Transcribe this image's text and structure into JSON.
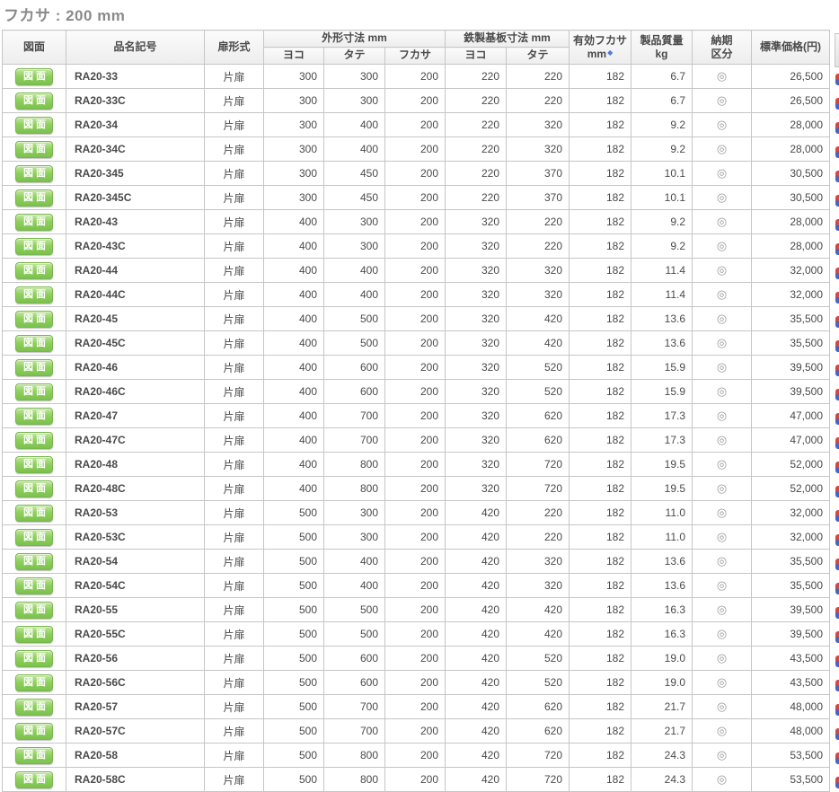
{
  "page": {
    "title": "フカサ : 200 mm"
  },
  "table": {
    "headers": {
      "drawing": "図面",
      "model": "品名記号",
      "door_type": "扉形式",
      "outer_dims_group": "外形寸法 mm",
      "base_dims_group": "鉄製基板寸法 mm",
      "width": "ヨコ",
      "height": "タテ",
      "depth": "フカサ",
      "effective_depth_line1": "有効フカサ",
      "effective_depth_line2": "mm",
      "effective_depth_marker": "◆",
      "weight_line1": "製品質量",
      "weight_line2": "kg",
      "delivery_line1": "納期",
      "delivery_line2": "区分",
      "price": "標準価格(円)"
    },
    "drawing_button_label": "図面",
    "delivery_symbol": "◎",
    "rows": [
      {
        "model": "RA20-33",
        "door": "片扉",
        "outer_w": "300",
        "outer_h": "300",
        "outer_d": "200",
        "base_w": "220",
        "base_h": "220",
        "eff_depth": "182",
        "weight": "6.7",
        "price": "26,500"
      },
      {
        "model": "RA20-33C",
        "door": "片扉",
        "outer_w": "300",
        "outer_h": "300",
        "outer_d": "200",
        "base_w": "220",
        "base_h": "220",
        "eff_depth": "182",
        "weight": "6.7",
        "price": "26,500"
      },
      {
        "model": "RA20-34",
        "door": "片扉",
        "outer_w": "300",
        "outer_h": "400",
        "outer_d": "200",
        "base_w": "220",
        "base_h": "320",
        "eff_depth": "182",
        "weight": "9.2",
        "price": "28,000"
      },
      {
        "model": "RA20-34C",
        "door": "片扉",
        "outer_w": "300",
        "outer_h": "400",
        "outer_d": "200",
        "base_w": "220",
        "base_h": "320",
        "eff_depth": "182",
        "weight": "9.2",
        "price": "28,000"
      },
      {
        "model": "RA20-345",
        "door": "片扉",
        "outer_w": "300",
        "outer_h": "450",
        "outer_d": "200",
        "base_w": "220",
        "base_h": "370",
        "eff_depth": "182",
        "weight": "10.1",
        "price": "30,500"
      },
      {
        "model": "RA20-345C",
        "door": "片扉",
        "outer_w": "300",
        "outer_h": "450",
        "outer_d": "200",
        "base_w": "220",
        "base_h": "370",
        "eff_depth": "182",
        "weight": "10.1",
        "price": "30,500"
      },
      {
        "model": "RA20-43",
        "door": "片扉",
        "outer_w": "400",
        "outer_h": "300",
        "outer_d": "200",
        "base_w": "320",
        "base_h": "220",
        "eff_depth": "182",
        "weight": "9.2",
        "price": "28,000"
      },
      {
        "model": "RA20-43C",
        "door": "片扉",
        "outer_w": "400",
        "outer_h": "300",
        "outer_d": "200",
        "base_w": "320",
        "base_h": "220",
        "eff_depth": "182",
        "weight": "9.2",
        "price": "28,000"
      },
      {
        "model": "RA20-44",
        "door": "片扉",
        "outer_w": "400",
        "outer_h": "400",
        "outer_d": "200",
        "base_w": "320",
        "base_h": "320",
        "eff_depth": "182",
        "weight": "11.4",
        "price": "32,000"
      },
      {
        "model": "RA20-44C",
        "door": "片扉",
        "outer_w": "400",
        "outer_h": "400",
        "outer_d": "200",
        "base_w": "320",
        "base_h": "320",
        "eff_depth": "182",
        "weight": "11.4",
        "price": "32,000"
      },
      {
        "model": "RA20-45",
        "door": "片扉",
        "outer_w": "400",
        "outer_h": "500",
        "outer_d": "200",
        "base_w": "320",
        "base_h": "420",
        "eff_depth": "182",
        "weight": "13.6",
        "price": "35,500"
      },
      {
        "model": "RA20-45C",
        "door": "片扉",
        "outer_w": "400",
        "outer_h": "500",
        "outer_d": "200",
        "base_w": "320",
        "base_h": "420",
        "eff_depth": "182",
        "weight": "13.6",
        "price": "35,500"
      },
      {
        "model": "RA20-46",
        "door": "片扉",
        "outer_w": "400",
        "outer_h": "600",
        "outer_d": "200",
        "base_w": "320",
        "base_h": "520",
        "eff_depth": "182",
        "weight": "15.9",
        "price": "39,500"
      },
      {
        "model": "RA20-46C",
        "door": "片扉",
        "outer_w": "400",
        "outer_h": "600",
        "outer_d": "200",
        "base_w": "320",
        "base_h": "520",
        "eff_depth": "182",
        "weight": "15.9",
        "price": "39,500"
      },
      {
        "model": "RA20-47",
        "door": "片扉",
        "outer_w": "400",
        "outer_h": "700",
        "outer_d": "200",
        "base_w": "320",
        "base_h": "620",
        "eff_depth": "182",
        "weight": "17.3",
        "price": "47,000"
      },
      {
        "model": "RA20-47C",
        "door": "片扉",
        "outer_w": "400",
        "outer_h": "700",
        "outer_d": "200",
        "base_w": "320",
        "base_h": "620",
        "eff_depth": "182",
        "weight": "17.3",
        "price": "47,000"
      },
      {
        "model": "RA20-48",
        "door": "片扉",
        "outer_w": "400",
        "outer_h": "800",
        "outer_d": "200",
        "base_w": "320",
        "base_h": "720",
        "eff_depth": "182",
        "weight": "19.5",
        "price": "52,000"
      },
      {
        "model": "RA20-48C",
        "door": "片扉",
        "outer_w": "400",
        "outer_h": "800",
        "outer_d": "200",
        "base_w": "320",
        "base_h": "720",
        "eff_depth": "182",
        "weight": "19.5",
        "price": "52,000"
      },
      {
        "model": "RA20-53",
        "door": "片扉",
        "outer_w": "500",
        "outer_h": "300",
        "outer_d": "200",
        "base_w": "420",
        "base_h": "220",
        "eff_depth": "182",
        "weight": "11.0",
        "price": "32,000"
      },
      {
        "model": "RA20-53C",
        "door": "片扉",
        "outer_w": "500",
        "outer_h": "300",
        "outer_d": "200",
        "base_w": "420",
        "base_h": "220",
        "eff_depth": "182",
        "weight": "11.0",
        "price": "32,000"
      },
      {
        "model": "RA20-54",
        "door": "片扉",
        "outer_w": "500",
        "outer_h": "400",
        "outer_d": "200",
        "base_w": "420",
        "base_h": "320",
        "eff_depth": "182",
        "weight": "13.6",
        "price": "35,500"
      },
      {
        "model": "RA20-54C",
        "door": "片扉",
        "outer_w": "500",
        "outer_h": "400",
        "outer_d": "200",
        "base_w": "420",
        "base_h": "320",
        "eff_depth": "182",
        "weight": "13.6",
        "price": "35,500"
      },
      {
        "model": "RA20-55",
        "door": "片扉",
        "outer_w": "500",
        "outer_h": "500",
        "outer_d": "200",
        "base_w": "420",
        "base_h": "420",
        "eff_depth": "182",
        "weight": "16.3",
        "price": "39,500"
      },
      {
        "model": "RA20-55C",
        "door": "片扉",
        "outer_w": "500",
        "outer_h": "500",
        "outer_d": "200",
        "base_w": "420",
        "base_h": "420",
        "eff_depth": "182",
        "weight": "16.3",
        "price": "39,500"
      },
      {
        "model": "RA20-56",
        "door": "片扉",
        "outer_w": "500",
        "outer_h": "600",
        "outer_d": "200",
        "base_w": "420",
        "base_h": "520",
        "eff_depth": "182",
        "weight": "19.0",
        "price": "43,500"
      },
      {
        "model": "RA20-56C",
        "door": "片扉",
        "outer_w": "500",
        "outer_h": "600",
        "outer_d": "200",
        "base_w": "420",
        "base_h": "520",
        "eff_depth": "182",
        "weight": "19.0",
        "price": "43,500"
      },
      {
        "model": "RA20-57",
        "door": "片扉",
        "outer_w": "500",
        "outer_h": "700",
        "outer_d": "200",
        "base_w": "420",
        "base_h": "620",
        "eff_depth": "182",
        "weight": "21.7",
        "price": "48,000"
      },
      {
        "model": "RA20-57C",
        "door": "片扉",
        "outer_w": "500",
        "outer_h": "700",
        "outer_d": "200",
        "base_w": "420",
        "base_h": "620",
        "eff_depth": "182",
        "weight": "21.7",
        "price": "48,000"
      },
      {
        "model": "RA20-58",
        "door": "片扉",
        "outer_w": "500",
        "outer_h": "800",
        "outer_d": "200",
        "base_w": "420",
        "base_h": "720",
        "eff_depth": "182",
        "weight": "24.3",
        "price": "53,500"
      },
      {
        "model": "RA20-58C",
        "door": "片扉",
        "outer_w": "500",
        "outer_h": "800",
        "outer_d": "200",
        "base_w": "420",
        "base_h": "720",
        "eff_depth": "182",
        "weight": "24.3",
        "price": "53,500"
      }
    ]
  },
  "colors": {
    "drawing_button_green": "#84c653",
    "marker_blue": "#4a7ddb",
    "delivery_symbol_gray": "#999999",
    "title_gray": "#8a8a8a",
    "border_gray": "#c6c6c6"
  }
}
